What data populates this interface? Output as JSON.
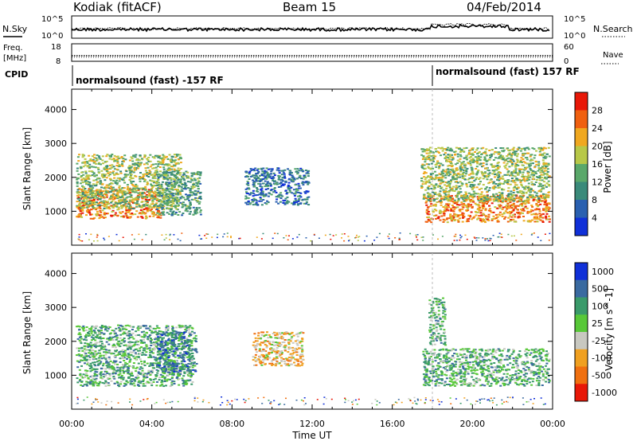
{
  "header": {
    "station": "Kodiak (fitACF)",
    "beam": "Beam 15",
    "date": "04/Feb/2014"
  },
  "strip_labels": {
    "nsky": "N.Sky",
    "nsearch": "N.Search",
    "freq": "Freq.",
    "freq_unit": "[MHz]",
    "nave": "Nave",
    "cpid": "CPID"
  },
  "noise_axis": {
    "top": "10^5",
    "bottom": "10^0"
  },
  "freq_axis": {
    "ticks": [
      "18",
      "8"
    ]
  },
  "nave_axis": {
    "ticks": [
      "60",
      "0"
    ]
  },
  "cpid_modes": [
    {
      "label": "normalsound (fast) -157 RF",
      "start_hour": 0
    },
    {
      "label": "normalsound (fast) 157 RF",
      "start_hour": 18
    }
  ],
  "x_axis": {
    "title": "Time UT",
    "range_hours": [
      0,
      24
    ],
    "tick_hours": [
      0,
      4,
      8,
      12,
      16,
      20,
      24
    ],
    "tick_labels": [
      "00:00",
      "04:00",
      "08:00",
      "12:00",
      "16:00",
      "20:00",
      "00:00"
    ]
  },
  "colors": {
    "power": [
      "#1030d8",
      "#2a60b0",
      "#3a8a7a",
      "#5aa86a",
      "#b8c848",
      "#f0a820",
      "#f06010",
      "#e81808"
    ],
    "velocity": [
      "#1030d8",
      "#3a6aa0",
      "#3a9a6a",
      "#58c838",
      "#c8c8c0",
      "#f0a020",
      "#f07010",
      "#e81808"
    ]
  },
  "chart_data": [
    {
      "type": "heatmap",
      "name": "power",
      "ylabel": "Slant Range [km]",
      "yticks": [
        1000,
        2000,
        3000,
        4000
      ],
      "ylim": [
        0,
        4600
      ],
      "xlim": [
        0,
        24
      ],
      "colorbar": {
        "title": "Power [dB]",
        "ticks": [
          "4",
          "8",
          "12",
          "16",
          "20",
          "24",
          "28"
        ],
        "range": [
          0,
          32
        ]
      },
      "regions": [
        {
          "x": [
            0.2,
            4.4
          ],
          "y": [
            800,
            1700
          ],
          "value": 27
        },
        {
          "x": [
            0.2,
            5.4
          ],
          "y": [
            1100,
            2700
          ],
          "value": 18
        },
        {
          "x": [
            4.2,
            6.4
          ],
          "y": [
            900,
            2200
          ],
          "value": 14
        },
        {
          "x": [
            8.6,
            11.8
          ],
          "y": [
            1200,
            2300
          ],
          "value": 10
        },
        {
          "x": [
            17.6,
            23.8
          ],
          "y": [
            700,
            1500
          ],
          "value": 27
        },
        {
          "x": [
            17.4,
            23.8
          ],
          "y": [
            1300,
            2900
          ],
          "value": 16
        }
      ]
    },
    {
      "type": "heatmap",
      "name": "velocity",
      "ylabel": "Slant Range [km]",
      "yticks": [
        1000,
        2000,
        3000,
        4000
      ],
      "ylim": [
        0,
        4600
      ],
      "xlim": [
        0,
        24
      ],
      "colorbar": {
        "title": "Velocity [m s^-1]",
        "ticks": [
          "1000",
          "500",
          "100",
          "25",
          "-25",
          "-100",
          "-500",
          "-1000"
        ],
        "range": [
          -1000,
          1000
        ]
      },
      "regions": [
        {
          "x": [
            0.2,
            6.0
          ],
          "y": [
            700,
            2500
          ],
          "value": 0
        },
        {
          "x": [
            4.5,
            5.4
          ],
          "y": [
            1000,
            1400
          ],
          "value": 120
        },
        {
          "x": [
            4.2,
            6.2
          ],
          "y": [
            1100,
            2300
          ],
          "value": 300
        },
        {
          "x": [
            9.0,
            11.5
          ],
          "y": [
            1300,
            2300
          ],
          "value": -300
        },
        {
          "x": [
            17.5,
            23.8
          ],
          "y": [
            700,
            1800
          ],
          "value": 0
        },
        {
          "x": [
            17.8,
            18.6
          ],
          "y": [
            1900,
            3300
          ],
          "value": 120
        }
      ]
    }
  ]
}
